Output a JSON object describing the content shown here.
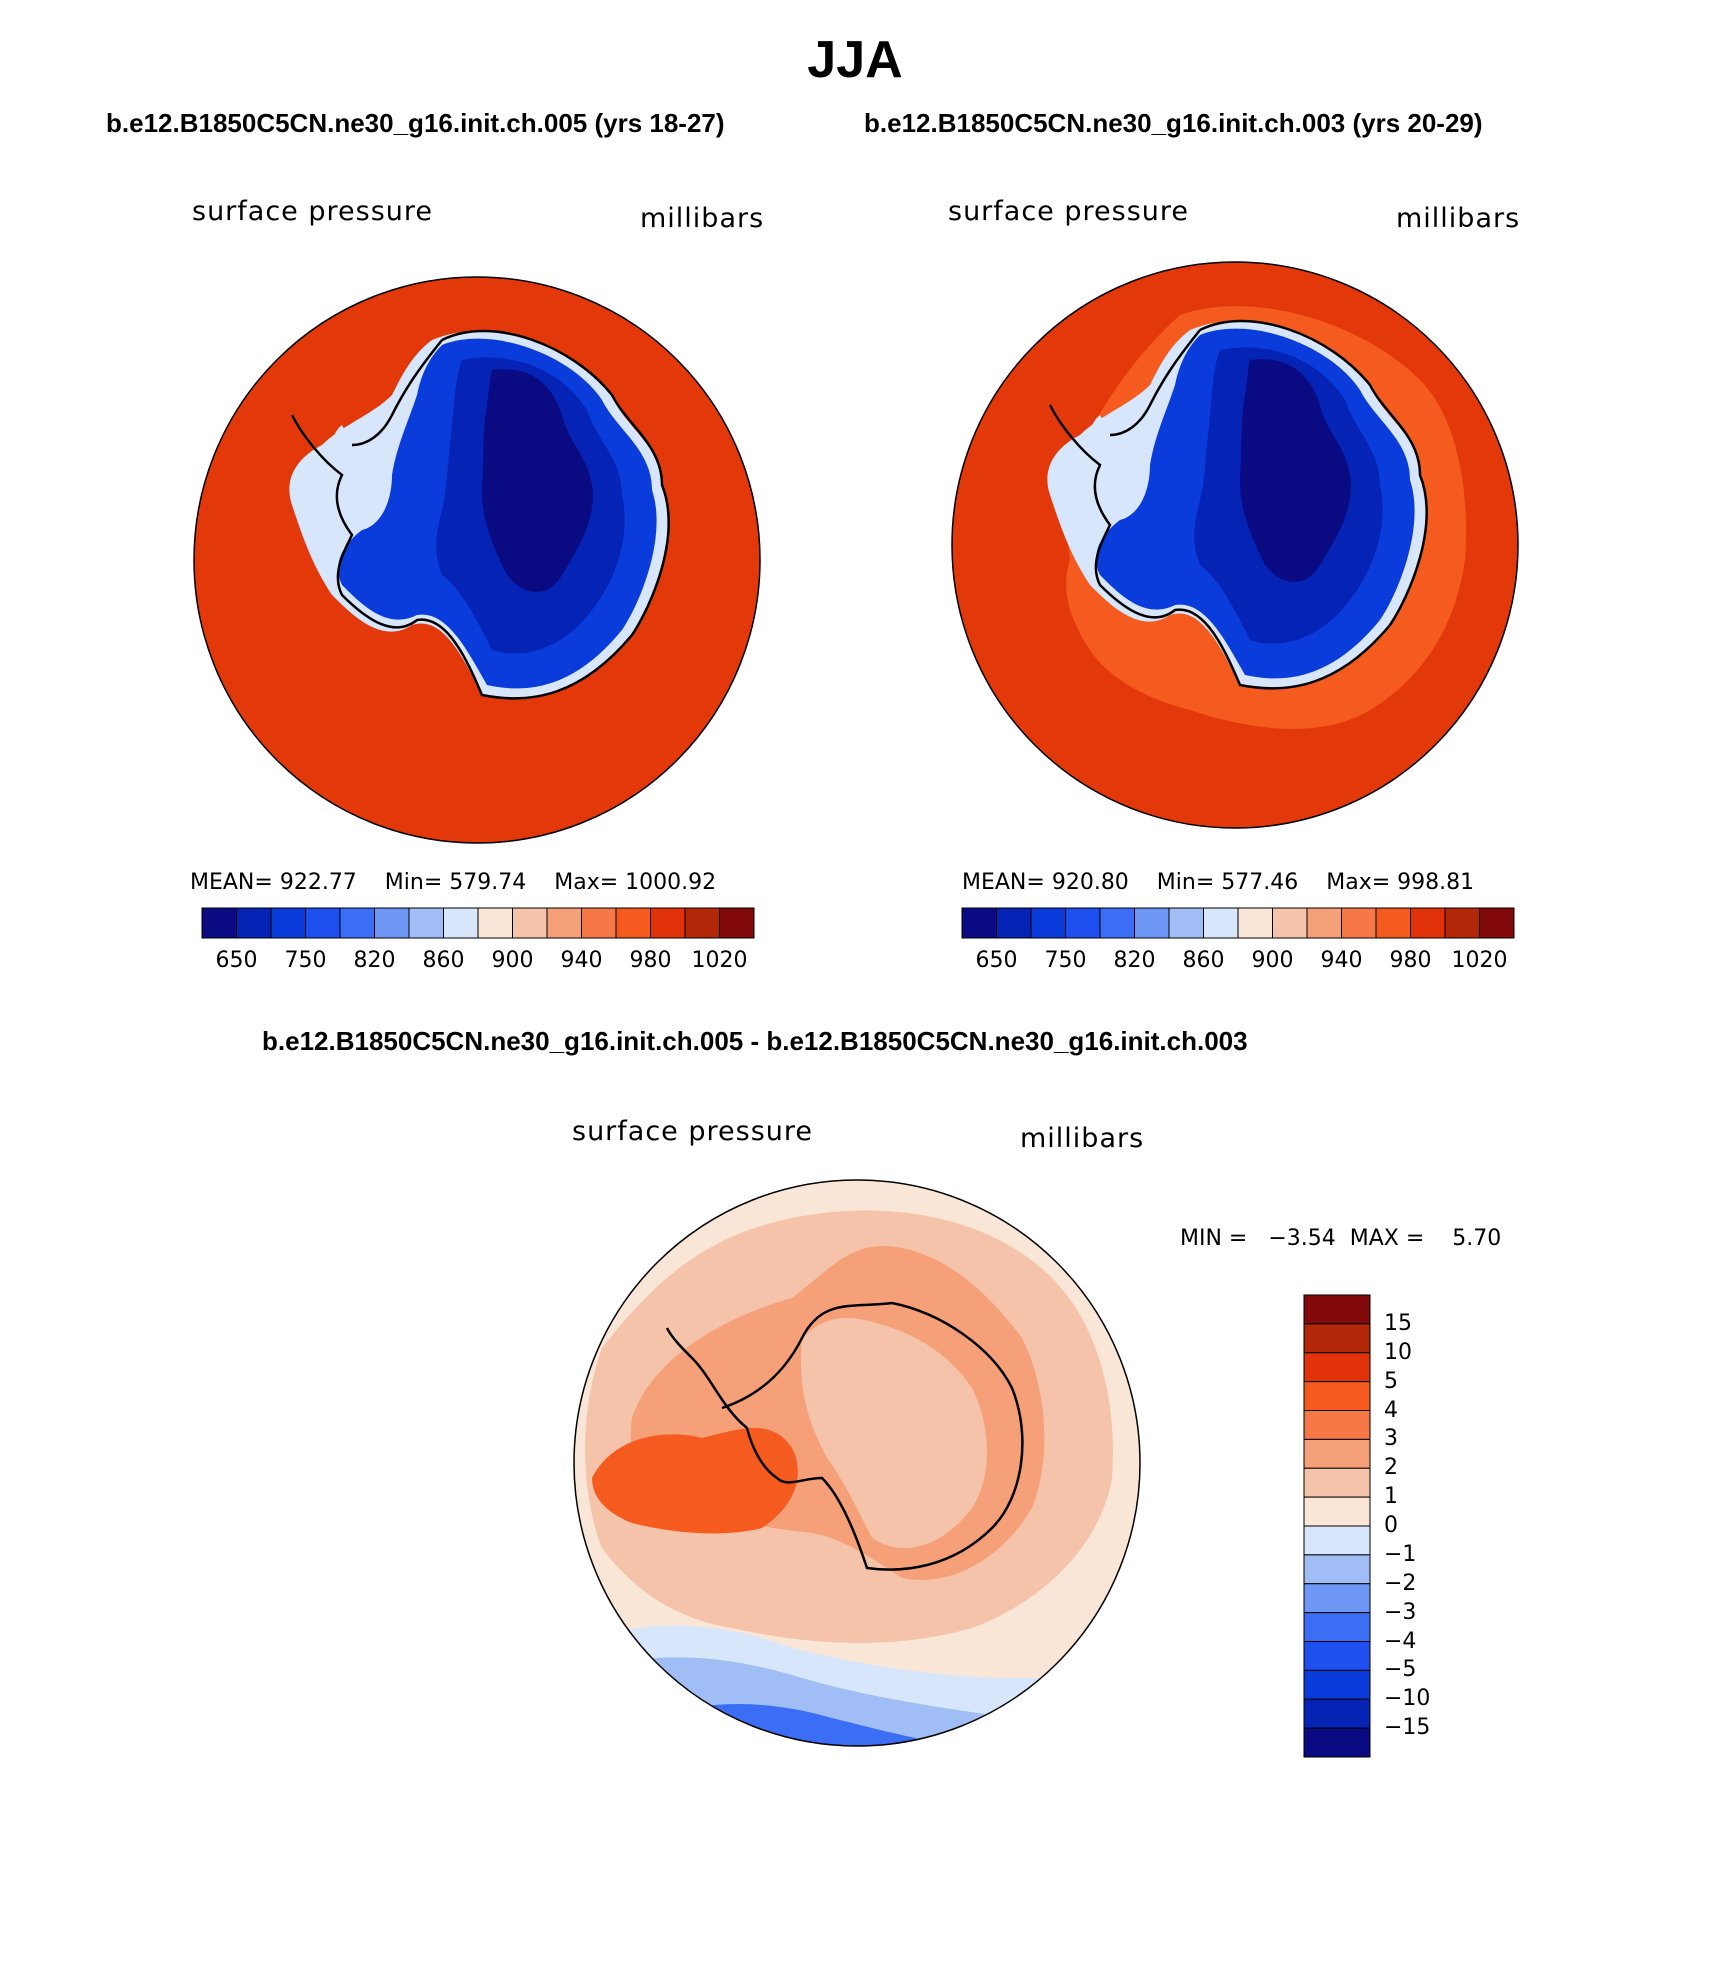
{
  "title": "JJA",
  "case_titles": {
    "left": "b.e12.B1850C5CN.ne30_g16.init.ch.005 (yrs 18-27)",
    "right": "b.e12.B1850C5CN.ne30_g16.init.ch.003 (yrs 20-29)",
    "diff": "b.e12.B1850C5CN.ne30_g16.init.ch.005 - b.e12.B1850C5CN.ne30_g16.init.ch.003"
  },
  "panels": [
    {
      "id": "case1",
      "variable": "surface pressure",
      "units": "millibars",
      "stats": {
        "mean_label": "MEAN=",
        "mean": "922.77",
        "min_label": "Min=",
        "min": "579.74",
        "max_label": "Max=",
        "max": "1000.92"
      }
    },
    {
      "id": "case2",
      "variable": "surface pressure",
      "units": "millibars",
      "stats": {
        "mean_label": "MEAN=",
        "mean": "920.80",
        "min_label": "Min=",
        "min": "577.46",
        "max_label": "Max=",
        "max": "998.81"
      }
    },
    {
      "id": "diff",
      "variable": "surface pressure",
      "units": "millibars",
      "stats": {
        "min_label": "MIN =",
        "min": "−3.54",
        "max_label": "MAX =",
        "max": "5.70"
      }
    }
  ],
  "colorbar_abs": {
    "colors": [
      "#0a0a82",
      "#0523b4",
      "#0a3cdc",
      "#1e50f0",
      "#3c6ef5",
      "#6e96f5",
      "#a0bef5",
      "#d7e6fa",
      "#fae6d7",
      "#f5c3aa",
      "#f5a078",
      "#f57846",
      "#f55a1e",
      "#e1320a",
      "#b4280a",
      "#820a0a"
    ],
    "labels": [
      "650",
      "750",
      "820",
      "860",
      "900",
      "940",
      "980",
      "1020"
    ]
  },
  "colorbar_diff": {
    "colors": [
      "#0a0a82",
      "#0523b4",
      "#0a3cdc",
      "#1e50f0",
      "#3c6ef5",
      "#6e96f5",
      "#a0bef5",
      "#d7e6fa",
      "#fae6d7",
      "#f5c3aa",
      "#f5a078",
      "#f57846",
      "#f55a1e",
      "#e1320a",
      "#b4280a",
      "#820a0a"
    ],
    "labels": [
      "15",
      "10",
      "5",
      "4",
      "3",
      "2",
      "1",
      "0",
      "−1",
      "−2",
      "−3",
      "−4",
      "−5",
      "−10",
      "−15"
    ]
  },
  "map_colors": {
    "ocean_abs": "#e3380a",
    "ring_abs": "#f55a1e",
    "ice_1": "#0523b4",
    "ice_2": "#0a3cdc",
    "ice_deep": "#0a0a82",
    "ice_edge": "#d7e6fa",
    "diff_bg": "#fae6d7",
    "diff_mid": "#f5c3aa",
    "diff_hi": "#f5a078",
    "diff_max": "#f55a1e",
    "diff_neg1": "#d7e6fa",
    "diff_neg2": "#a0bef5",
    "diff_neg3": "#3c6ef5"
  }
}
